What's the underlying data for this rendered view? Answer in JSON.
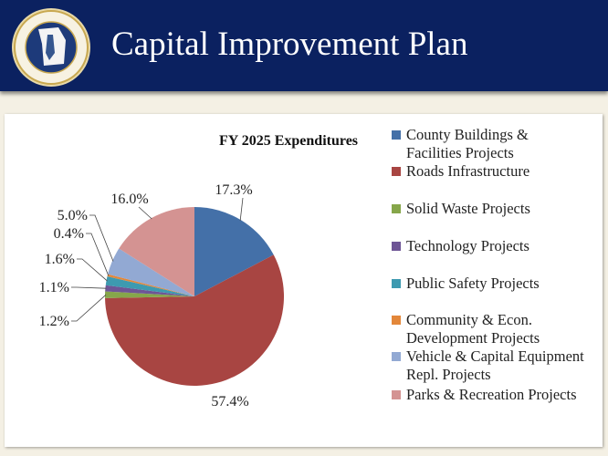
{
  "header": {
    "title": "Capital Improvement Plan",
    "seal_text": [
      "SPARTANBURG COUNTY",
      "SOUTH CAROLINA"
    ]
  },
  "chart_data": {
    "type": "pie",
    "title": "FY 2025 Expenditures",
    "start": "top",
    "direction": "clockwise",
    "legend_position": "right",
    "categories": [
      "County Buildings & Facilities Projects",
      "Roads Infrastructure",
      "Solid Waste Projects",
      "Technology Projects",
      "Public Safety Projects",
      "Community & Econ. Development Projects",
      "Vehicle & Capital Equipment Repl. Projects",
      "Parks & Recreation Projects"
    ],
    "values": [
      17.3,
      57.4,
      1.2,
      1.1,
      1.6,
      0.4,
      5.0,
      16.0
    ],
    "labels": [
      "17.3%",
      "57.4%",
      "1.2%",
      "1.1%",
      "1.6%",
      "0.4%",
      "5.0%",
      "16.0%"
    ],
    "colors": [
      "#4470a8",
      "#a84542",
      "#86a64a",
      "#6e5596",
      "#3d9ab0",
      "#e3873a",
      "#92a9d3",
      "#d49392"
    ]
  }
}
